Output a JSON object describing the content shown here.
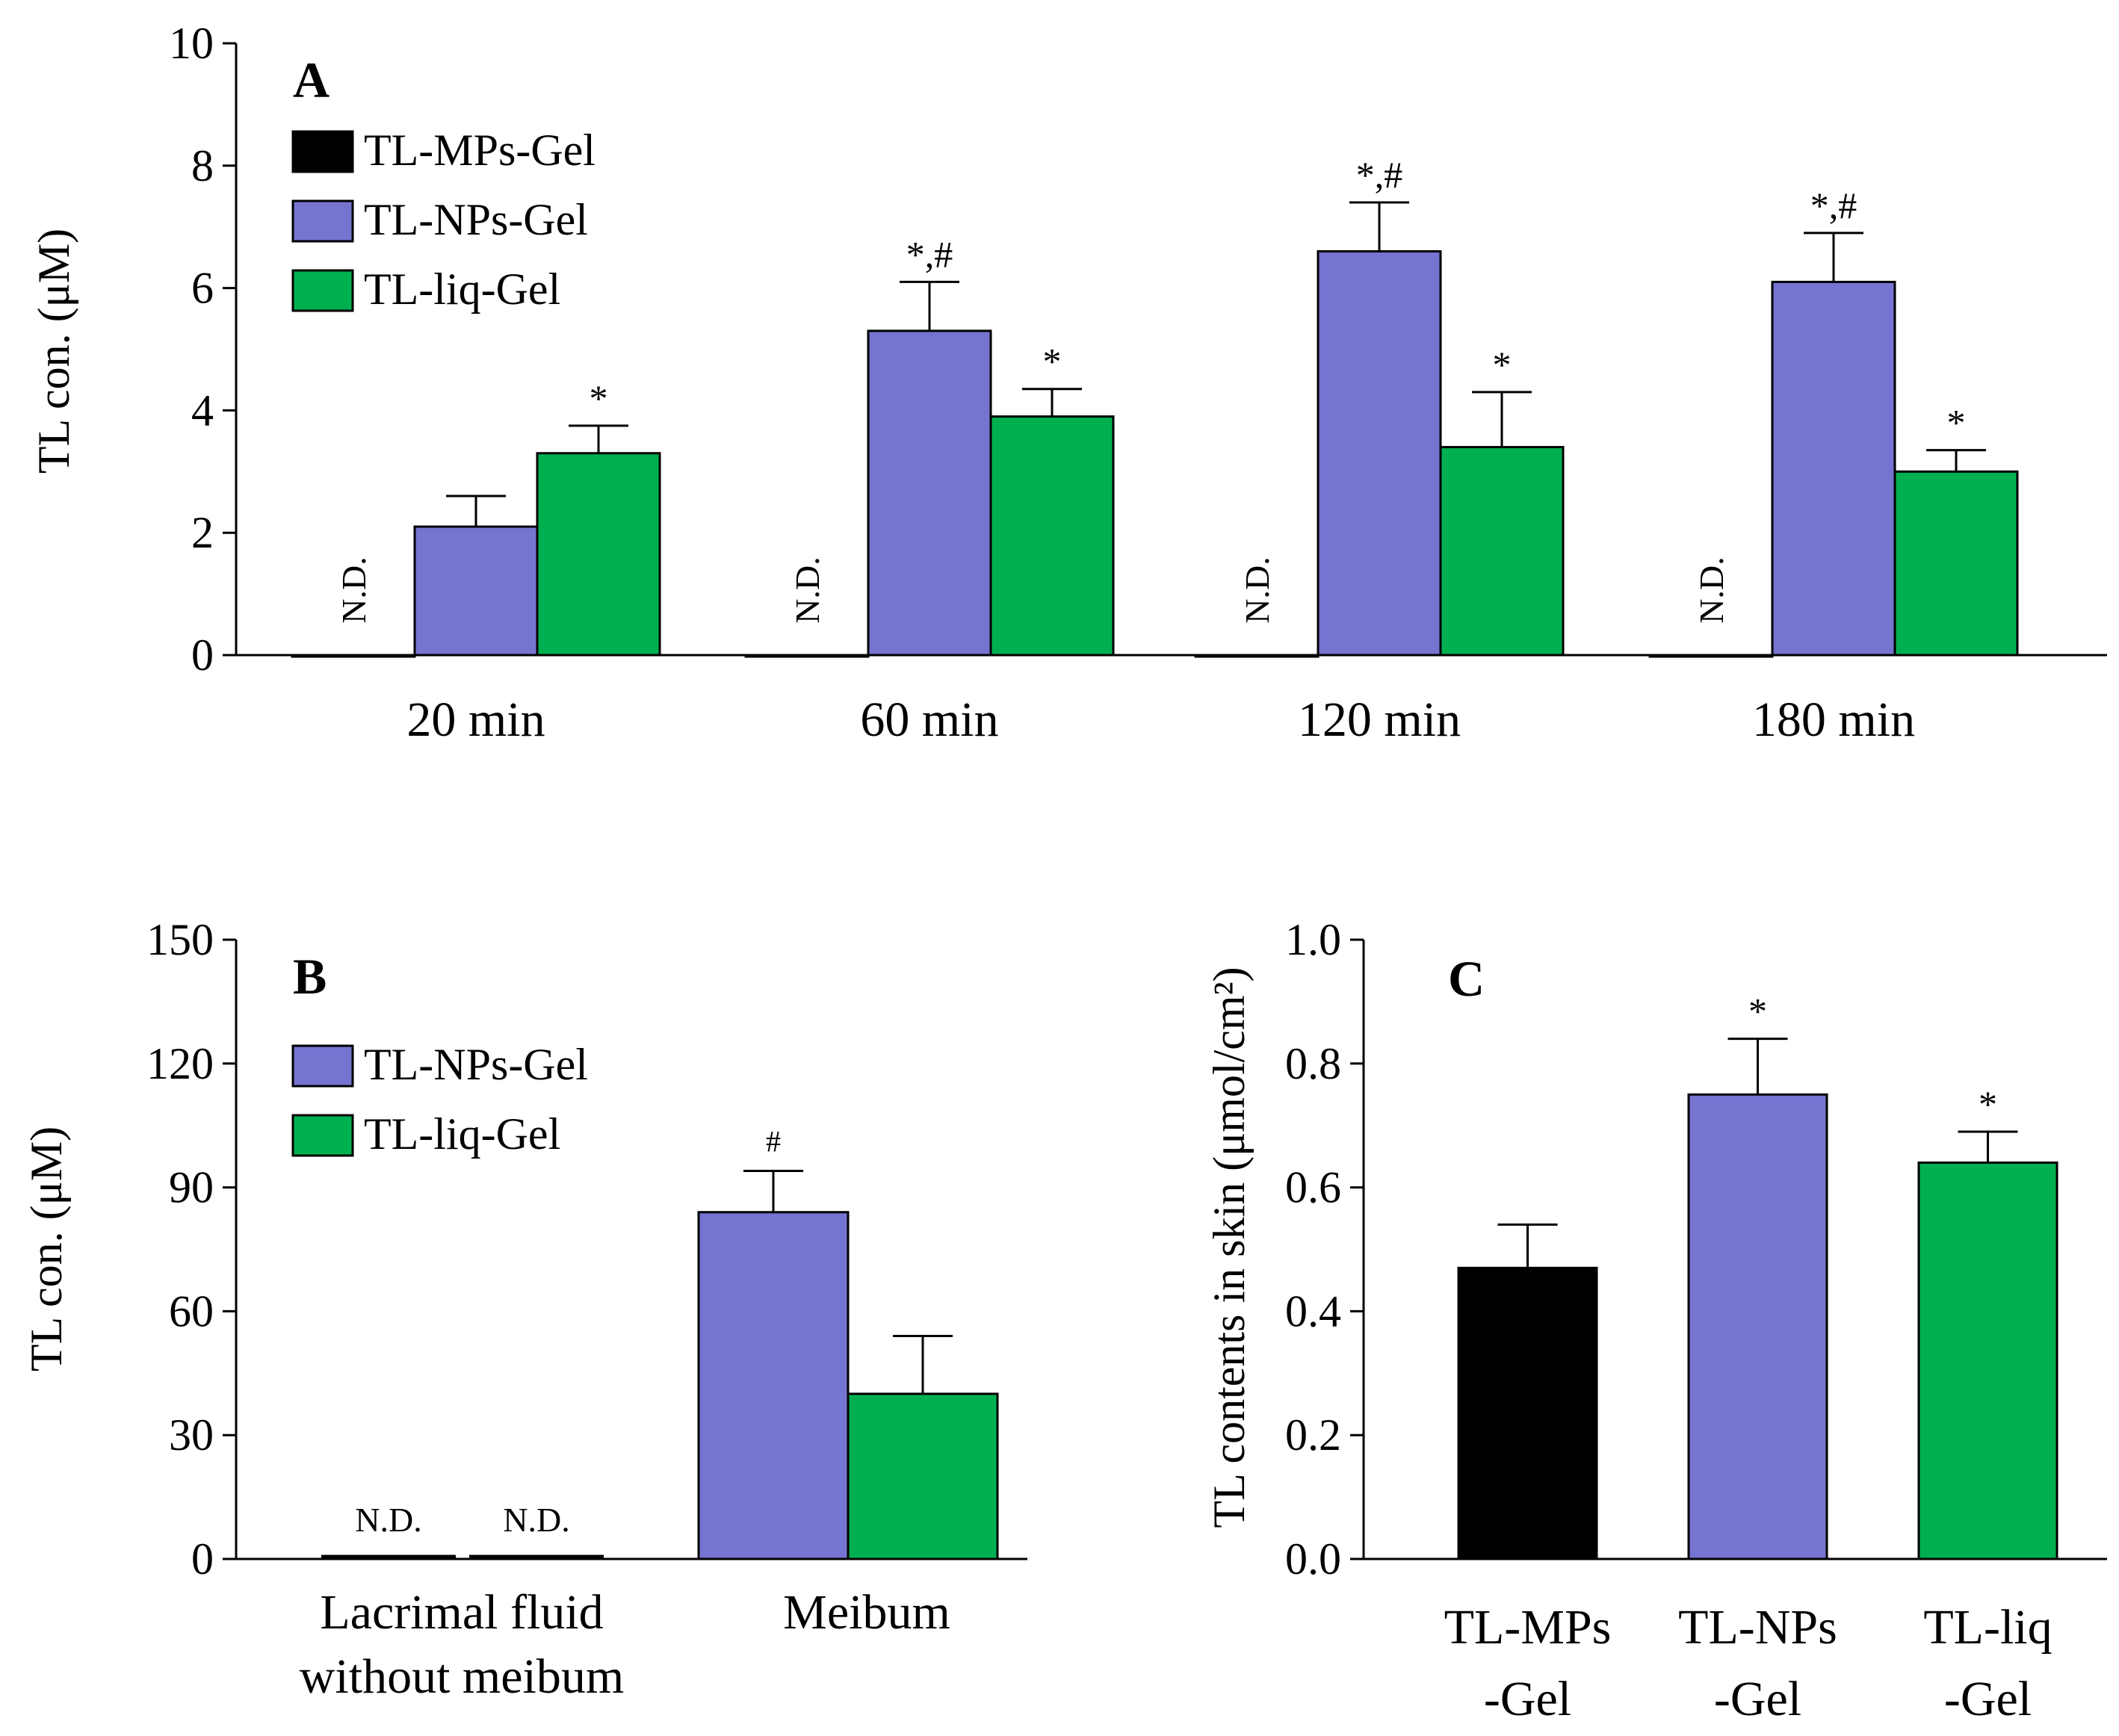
{
  "colors": {
    "mps": "#000000",
    "nps": "#7574d0",
    "liq": "#00b050",
    "axis": "#000000"
  },
  "chart_data": [
    {
      "panel": "A",
      "type": "bar",
      "ylabel": "TL con. (μM)",
      "ylim": [
        0,
        10
      ],
      "yticks": [
        "0",
        "2",
        "4",
        "6",
        "8",
        "10"
      ],
      "categories": [
        "20 min",
        "60 min",
        "120 min",
        "180 min"
      ],
      "series": [
        {
          "name": "TL-MPs-Gel",
          "color_key": "mps",
          "values": [
            0,
            0,
            0,
            0
          ],
          "errors": [
            0,
            0,
            0,
            0
          ],
          "labels": [
            "N.D.",
            "N.D.",
            "N.D.",
            "N.D."
          ]
        },
        {
          "name": "TL-NPs-Gel",
          "color_key": "nps",
          "values": [
            2.1,
            5.3,
            6.6,
            6.1
          ],
          "errors": [
            0.5,
            0.8,
            0.8,
            0.8
          ],
          "labels": [
            "",
            "*,#",
            "*,#",
            "*,#"
          ]
        },
        {
          "name": "TL-liq-Gel",
          "color_key": "liq",
          "values": [
            3.3,
            3.9,
            3.4,
            3.0
          ],
          "errors": [
            0.45,
            0.45,
            0.9,
            0.35
          ],
          "labels": [
            "*",
            "*",
            "*",
            "*"
          ]
        }
      ],
      "legend": "top-left",
      "grid": false
    },
    {
      "panel": "B",
      "type": "bar",
      "ylabel": "TL con. (μM)",
      "ylim": [
        0,
        150
      ],
      "yticks": [
        "0",
        "30",
        "60",
        "90",
        "120",
        "150"
      ],
      "categories": [
        [
          "Lacrimal  fluid",
          "without meibum"
        ],
        [
          "Meibum"
        ]
      ],
      "series": [
        {
          "name": "TL-NPs-Gel",
          "color_key": "nps",
          "values": [
            0,
            84
          ],
          "errors": [
            0,
            10
          ],
          "labels": [
            "N.D.",
            "#"
          ]
        },
        {
          "name": "TL-liq-Gel",
          "color_key": "liq",
          "values": [
            0,
            40
          ],
          "errors": [
            0,
            14
          ],
          "labels": [
            "N.D.",
            ""
          ]
        }
      ],
      "legend": "top-left",
      "grid": false
    },
    {
      "panel": "C",
      "type": "bar",
      "ylabel": "TL contents in skin (μmol/cm²)",
      "ylim": [
        0,
        1.0
      ],
      "yticks": [
        "0.0",
        "0.2",
        "0.4",
        "0.6",
        "0.8",
        "1.0"
      ],
      "categories": [
        [
          "TL-MPs",
          "-Gel"
        ],
        [
          "TL-NPs",
          "-Gel"
        ],
        [
          "TL-liq",
          "-Gel"
        ]
      ],
      "values": [
        0.47,
        0.75,
        0.64
      ],
      "errors": [
        0.07,
        0.09,
        0.05
      ],
      "labels": [
        "",
        "*",
        "*"
      ],
      "color_keys": [
        "mps",
        "nps",
        "liq"
      ],
      "grid": false
    }
  ]
}
